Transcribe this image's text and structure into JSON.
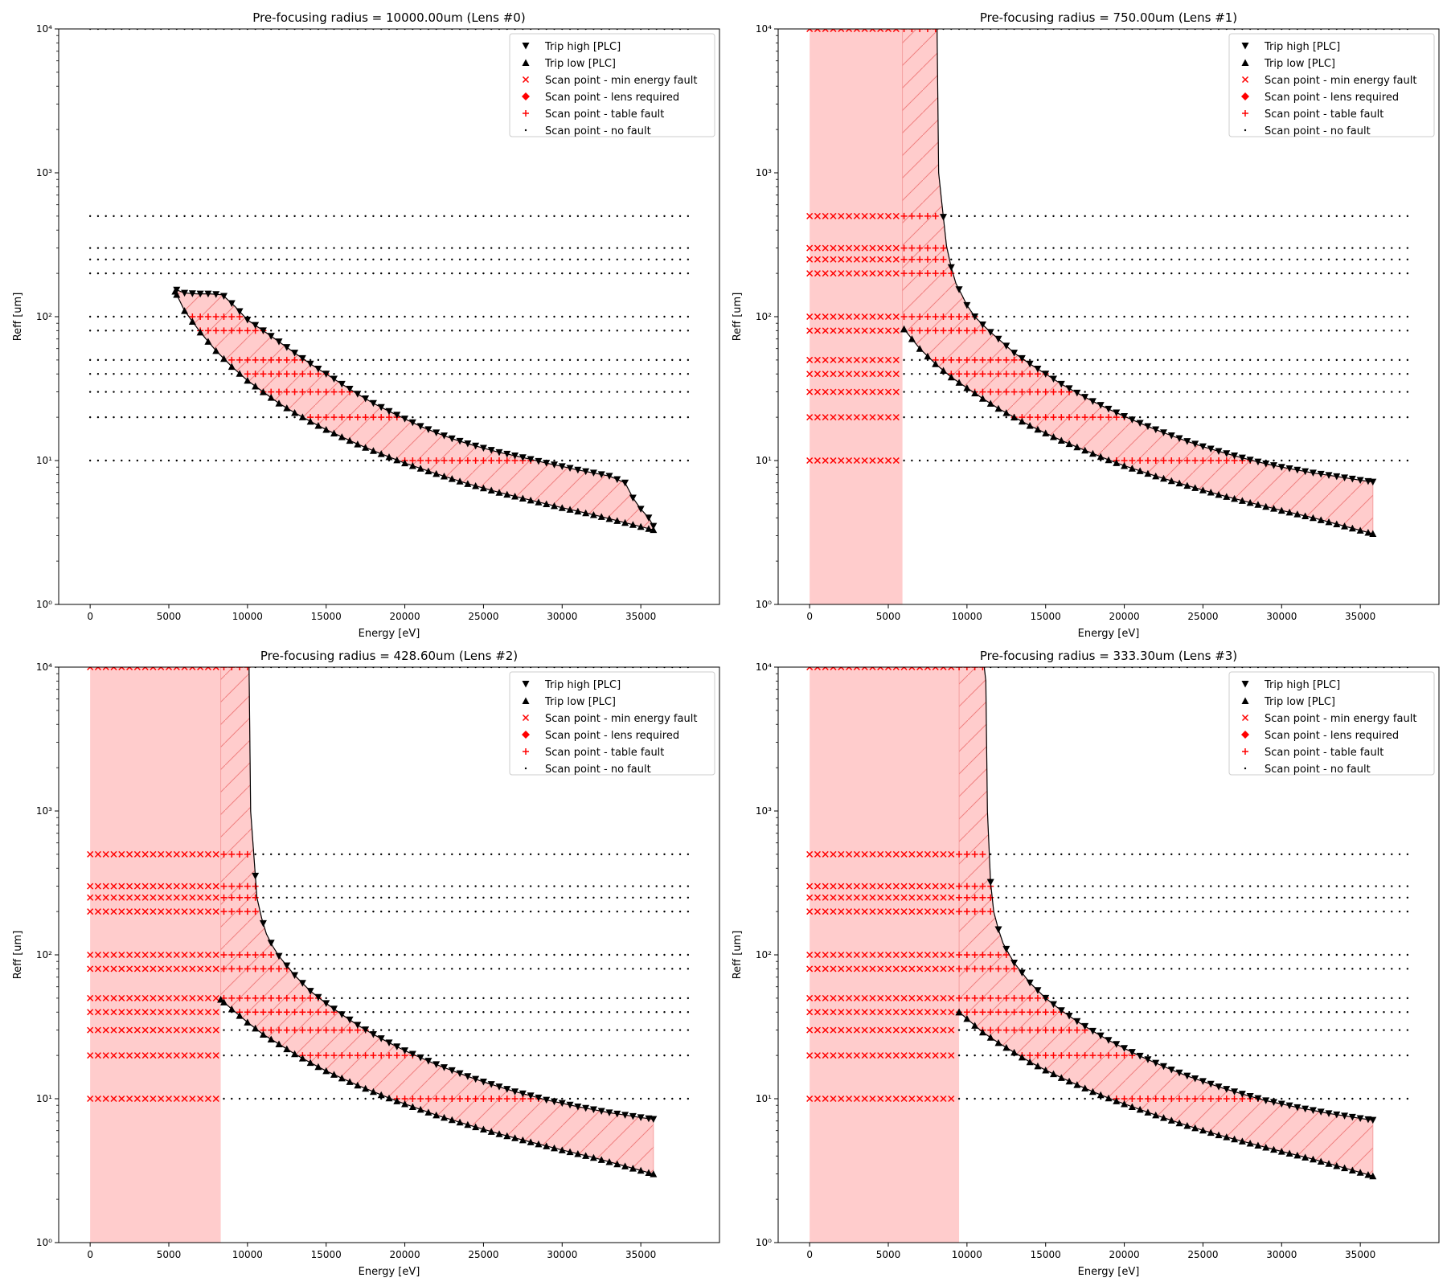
{
  "figure": {
    "background": "#ffffff"
  },
  "legend_entries": [
    {
      "label": "Trip high [PLC]",
      "marker": "tri-down",
      "color": "#000000"
    },
    {
      "label": "Trip low [PLC]",
      "marker": "tri-up",
      "color": "#000000"
    },
    {
      "label": "Scan point - min energy fault",
      "marker": "x",
      "color": "#ff0000"
    },
    {
      "label": "Scan point - lens required",
      "marker": "diamond",
      "color": "#ff0000"
    },
    {
      "label": "Scan point - table fault",
      "marker": "plus",
      "color": "#ff0000"
    },
    {
      "label": "Scan point - no fault",
      "marker": "dot",
      "color": "#000000"
    }
  ],
  "chart_data": [
    {
      "type": "scatter",
      "title": "Pre-focusing radius = 10000.00um (Lens #0)",
      "xlabel": "Energy [eV]",
      "ylabel": "Reff [um]",
      "xlim": [
        -2000,
        40000
      ],
      "ylim": [
        1,
        10000
      ],
      "yscale": "log",
      "xticks": [
        0,
        5000,
        10000,
        15000,
        20000,
        25000,
        30000,
        35000
      ],
      "yticks": [
        {
          "value": 1,
          "label": "10⁰"
        },
        {
          "value": 10,
          "label": "10¹"
        },
        {
          "value": 100,
          "label": "10²"
        },
        {
          "value": 1000,
          "label": "10³"
        },
        {
          "value": 10000,
          "label": "10⁴"
        }
      ],
      "legend_position": "upper right",
      "scan_rows_reff": [
        10000,
        500,
        300,
        250,
        200,
        100,
        80,
        50,
        40,
        30,
        20,
        10
      ],
      "scan_energy_range": [
        0,
        38000
      ],
      "scan_energy_step": 500,
      "min_energy_ev": null,
      "trip_high": {
        "energy": [
          5400,
          6000,
          6800,
          7600,
          8400,
          9200,
          10000,
          11000,
          12000,
          13000,
          14000,
          15000,
          16000,
          17000,
          18000,
          19000,
          20000,
          21000,
          22000,
          23000,
          24000,
          25000,
          26000,
          27000,
          28000,
          29000,
          30000,
          31000,
          32000,
          33000,
          34000,
          34500,
          35000,
          35500,
          35800
        ],
        "reff": [
          155,
          146,
          144,
          144,
          142,
          118,
          95,
          80,
          67,
          56,
          47,
          40,
          34,
          29,
          25,
          22,
          19.5,
          17.3,
          15.6,
          14.2,
          13.1,
          12.2,
          11.4,
          10.8,
          10.2,
          9.6,
          9.1,
          8.6,
          8.2,
          7.8,
          7.0,
          5.5,
          4.6,
          4.0,
          3.5
        ]
      },
      "trip_low": {
        "energy": [
          5400,
          6000,
          7000,
          8000,
          9000,
          10000,
          11000,
          12000,
          13000,
          14000,
          15000,
          16000,
          17000,
          18000,
          19000,
          20000,
          22000,
          24000,
          26000,
          28000,
          30000,
          32000,
          34000,
          35800
        ],
        "reff": [
          150,
          110,
          78,
          58,
          45,
          36,
          30,
          25,
          21.5,
          18.7,
          16.4,
          14.6,
          13.0,
          11.7,
          10.6,
          9.6,
          8.1,
          6.9,
          6.0,
          5.3,
          4.7,
          4.2,
          3.7,
          3.3
        ]
      },
      "series": [
        {
          "name": "Scan point - min energy fault",
          "points": []
        },
        {
          "name": "Scan point - lens required",
          "points": []
        },
        {
          "name": "Scan point - table fault",
          "points": []
        },
        {
          "name": "Scan point - no fault",
          "points": []
        }
      ]
    },
    {
      "type": "scatter",
      "title": "Pre-focusing radius = 750.00um (Lens #1)",
      "xlabel": "Energy [eV]",
      "ylabel": "Reff [um]",
      "xlim": [
        -2000,
        40000
      ],
      "ylim": [
        1,
        10000
      ],
      "yscale": "log",
      "xticks": [
        0,
        5000,
        10000,
        15000,
        20000,
        25000,
        30000,
        35000
      ],
      "yticks": [
        {
          "value": 1,
          "label": "10⁰"
        },
        {
          "value": 10,
          "label": "10¹"
        },
        {
          "value": 100,
          "label": "10²"
        },
        {
          "value": 1000,
          "label": "10³"
        },
        {
          "value": 10000,
          "label": "10⁴"
        }
      ],
      "legend_position": "upper right",
      "scan_rows_reff": [
        10000,
        500,
        300,
        250,
        200,
        100,
        80,
        50,
        40,
        30,
        20,
        10
      ],
      "scan_energy_range": [
        0,
        38000
      ],
      "scan_energy_step": 500,
      "min_energy_ev": 5900,
      "trip_high": {
        "energy": [
          8100,
          8200,
          8400,
          8700,
          9000,
          9300,
          9700,
          10000,
          10500,
          11000,
          11500,
          12000,
          13000,
          14000,
          15000,
          16000,
          17000,
          18000,
          19000,
          20000,
          21000,
          22000,
          23000,
          24000,
          25000,
          26000,
          27000,
          28000,
          29000,
          30000,
          31000,
          32000,
          33000,
          34000,
          35000,
          35800
        ],
        "reff": [
          10000,
          1000,
          620,
          310,
          220,
          170,
          140,
          120,
          100,
          88,
          78,
          70,
          56,
          47,
          40,
          34,
          29.5,
          25.8,
          22.8,
          20.3,
          18.2,
          16.4,
          14.9,
          13.6,
          12.5,
          11.6,
          10.8,
          10.1,
          9.5,
          9.0,
          8.6,
          8.2,
          7.9,
          7.6,
          7.3,
          7.1
        ]
      },
      "trip_low": {
        "energy": [
          6000,
          7000,
          8000,
          9000,
          10000,
          11000,
          12000,
          13000,
          14000,
          15000,
          16000,
          17000,
          18000,
          19000,
          20000,
          22000,
          24000,
          26000,
          28000,
          30000,
          32000,
          34000,
          35800
        ],
        "reff": [
          82,
          60,
          47,
          38,
          32,
          27,
          23,
          20,
          17.5,
          15.5,
          13.8,
          12.4,
          11.2,
          10.1,
          9.2,
          7.8,
          6.7,
          5.8,
          5.1,
          4.5,
          4.0,
          3.5,
          3.1
        ]
      },
      "series": [
        {
          "name": "Scan point - min energy fault",
          "points": []
        },
        {
          "name": "Scan point - lens required",
          "points": []
        },
        {
          "name": "Scan point - table fault",
          "points": []
        },
        {
          "name": "Scan point - no fault",
          "points": []
        }
      ]
    },
    {
      "type": "scatter",
      "title": "Pre-focusing radius = 428.60um (Lens #2)",
      "xlabel": "Energy [eV]",
      "ylabel": "Reff [um]",
      "xlim": [
        -2000,
        40000
      ],
      "ylim": [
        1,
        10000
      ],
      "yscale": "log",
      "xticks": [
        0,
        5000,
        10000,
        15000,
        20000,
        25000,
        30000,
        35000
      ],
      "yticks": [
        {
          "value": 1,
          "label": "10⁰"
        },
        {
          "value": 10,
          "label": "10¹"
        },
        {
          "value": 100,
          "label": "10²"
        },
        {
          "value": 1000,
          "label": "10³"
        },
        {
          "value": 10000,
          "label": "10⁴"
        }
      ],
      "legend_position": "upper right",
      "scan_rows_reff": [
        10000,
        500,
        300,
        250,
        200,
        100,
        80,
        50,
        40,
        30,
        20,
        10
      ],
      "scan_energy_range": [
        0,
        38000
      ],
      "scan_energy_step": 500,
      "min_energy_ev": 8300,
      "trip_high": {
        "energy": [
          10100,
          10200,
          10400,
          10600,
          10900,
          11200,
          11600,
          12000,
          12500,
          13000,
          14000,
          15000,
          16000,
          17000,
          18000,
          19000,
          20000,
          21000,
          22000,
          23000,
          24000,
          25000,
          26000,
          27000,
          28000,
          29000,
          30000,
          31000,
          32000,
          33000,
          34000,
          35000,
          35800
        ],
        "reff": [
          10000,
          1000,
          500,
          250,
          180,
          140,
          115,
          98,
          84,
          72,
          56,
          46,
          38.5,
          32.5,
          28,
          24.5,
          21.6,
          19.3,
          17.3,
          15.7,
          14.3,
          13.1,
          12.1,
          11.2,
          10.5,
          9.8,
          9.3,
          8.8,
          8.4,
          8.0,
          7.7,
          7.4,
          7.2
        ]
      },
      "trip_low": {
        "energy": [
          8300,
          9000,
          10000,
          11000,
          12000,
          13000,
          14000,
          15000,
          16000,
          17000,
          18000,
          19000,
          20000,
          22000,
          24000,
          26000,
          28000,
          30000,
          32000,
          34000,
          35800
        ],
        "reff": [
          49,
          42,
          34,
          28,
          24,
          20.5,
          17.8,
          15.6,
          13.9,
          12.4,
          11.2,
          10.1,
          9.2,
          7.7,
          6.6,
          5.7,
          5.0,
          4.4,
          3.9,
          3.4,
          3.0
        ]
      },
      "series": [
        {
          "name": "Scan point - min energy fault",
          "points": []
        },
        {
          "name": "Scan point - lens required",
          "points": []
        },
        {
          "name": "Scan point - table fault",
          "points": []
        },
        {
          "name": "Scan point - no fault",
          "points": []
        }
      ]
    },
    {
      "type": "scatter",
      "title": "Pre-focusing radius = 333.30um (Lens #3)",
      "xlabel": "Energy [eV]",
      "ylabel": "Reff [um]",
      "xlim": [
        -2000,
        40000
      ],
      "ylim": [
        1,
        10000
      ],
      "yscale": "log",
      "xticks": [
        0,
        5000,
        10000,
        15000,
        20000,
        25000,
        30000,
        35000
      ],
      "yticks": [
        {
          "value": 1,
          "label": "10⁰"
        },
        {
          "value": 10,
          "label": "10¹"
        },
        {
          "value": 100,
          "label": "10²"
        },
        {
          "value": 1000,
          "label": "10³"
        },
        {
          "value": 10000,
          "label": "10⁴"
        }
      ],
      "legend_position": "upper right",
      "scan_rows_reff": [
        10000,
        500,
        300,
        250,
        200,
        100,
        80,
        50,
        40,
        30,
        20,
        10
      ],
      "scan_energy_range": [
        0,
        38000
      ],
      "scan_energy_step": 500,
      "min_energy_ev": 9500,
      "trip_high": {
        "energy": [
          11100,
          11200,
          11300,
          11500,
          11700,
          12000,
          12300,
          12700,
          13000,
          13500,
          14000,
          15000,
          16000,
          17000,
          18000,
          19000,
          20000,
          21000,
          22000,
          23000,
          24000,
          25000,
          26000,
          27000,
          28000,
          29000,
          30000,
          31000,
          32000,
          33000,
          34000,
          35000,
          35800
        ],
        "reff": [
          10000,
          8000,
          1000,
          320,
          200,
          150,
          120,
          100,
          88,
          75,
          64,
          50,
          41,
          34.5,
          29.5,
          25.5,
          22.4,
          19.8,
          17.7,
          15.9,
          14.4,
          13.2,
          12.1,
          11.2,
          10.4,
          9.7,
          9.2,
          8.7,
          8.3,
          7.9,
          7.6,
          7.3,
          7.1
        ]
      },
      "trip_low": {
        "energy": [
          9500,
          10000,
          11000,
          12000,
          13000,
          14000,
          15000,
          16000,
          17000,
          18000,
          19000,
          20000,
          22000,
          24000,
          26000,
          28000,
          30000,
          32000,
          34000,
          35800
        ],
        "reff": [
          40,
          36,
          29,
          24.5,
          21,
          18,
          15.8,
          14,
          12.5,
          11.2,
          10.1,
          9.2,
          7.7,
          6.5,
          5.6,
          4.9,
          4.3,
          3.8,
          3.3,
          2.9
        ]
      },
      "series": [
        {
          "name": "Scan point - min energy fault",
          "points": []
        },
        {
          "name": "Scan point - lens required",
          "points": []
        },
        {
          "name": "Scan point - table fault",
          "points": []
        },
        {
          "name": "Scan point - no fault",
          "points": []
        }
      ]
    }
  ]
}
